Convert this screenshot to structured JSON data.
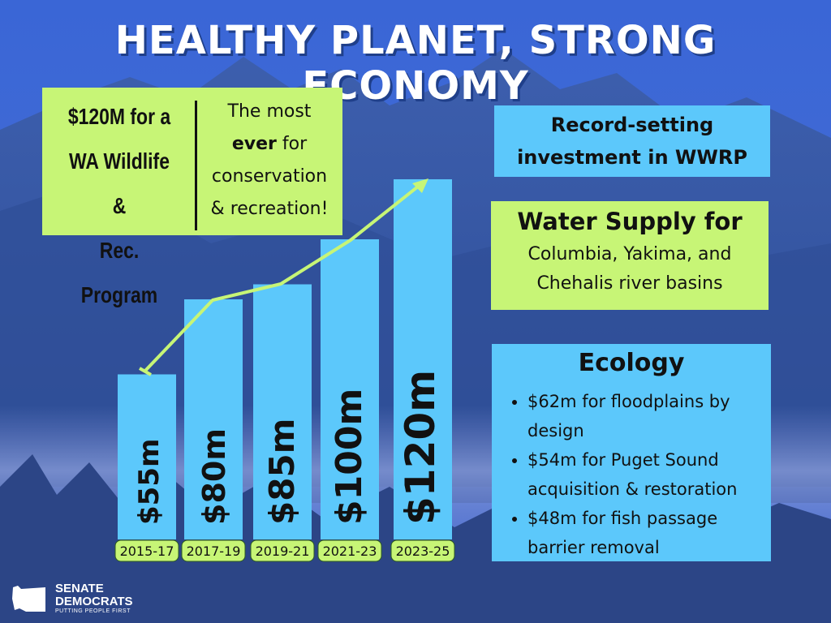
{
  "title": "HEALTHY PLANET, STRONG ECONOMY",
  "wwrp_box": {
    "left_lines": [
      "$120M for a",
      "WA Wildlife &",
      "Rec. Program"
    ],
    "right_line1": "The most",
    "right_bold": "ever",
    "right_after_bold": " for",
    "right_line3": "conservation",
    "right_line4": "& recreation!"
  },
  "record_box": {
    "line1": "Record-setting",
    "line2": "investment in WWRP"
  },
  "water_box": {
    "heading": "Water Supply for",
    "line1": "Columbia, Yakima, and",
    "line2": "Chehalis river basins"
  },
  "ecology_box": {
    "heading": "Ecology",
    "items": [
      "$62m for floodplains by design",
      "$54m for Puget Sound acquisition & restoration",
      "$48m for fish passage barrier removal"
    ]
  },
  "logo": {
    "line1": "SENATE",
    "line2": "DEMOCRATS",
    "tagline": "PUTTING PEOPLE FIRST"
  },
  "colors": {
    "bar": "#5cc8fb",
    "label_box": "#c7f576",
    "trend_line": "#c7f576",
    "title_shadow": "#1f3f8a"
  },
  "chart_data": {
    "type": "bar",
    "categories": [
      "2015-17",
      "2017-19",
      "2019-21",
      "2021-23",
      "2023-25"
    ],
    "values": [
      55,
      80,
      85,
      100,
      120
    ],
    "value_labels": [
      "$55m",
      "$80m",
      "$85m",
      "$100m",
      "$120m"
    ],
    "unit": "$m",
    "trend_line": true
  }
}
